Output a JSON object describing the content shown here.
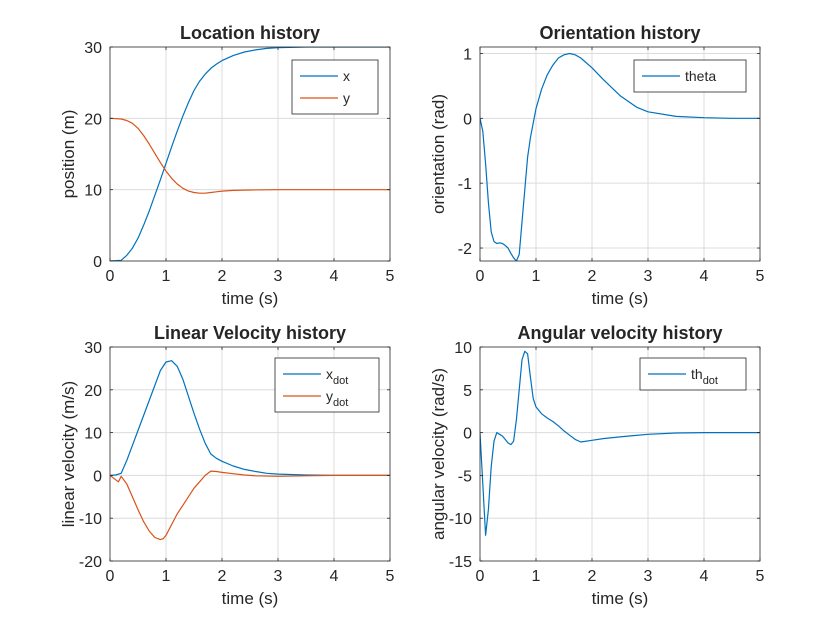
{
  "colors": {
    "series1": "#0072BD",
    "series2": "#D95319",
    "grid": "#dcdcdc",
    "axis": "#262626"
  },
  "chart_data": [
    {
      "type": "line",
      "title": "Location history",
      "xlabel": "time (s)",
      "ylabel": "position (m)",
      "xlim": [
        0,
        5
      ],
      "ylim": [
        0,
        30
      ],
      "xticks": [
        "0",
        "1",
        "2",
        "3",
        "4",
        "5"
      ],
      "yticks": [
        "0",
        "10",
        "20",
        "30"
      ],
      "grid": true,
      "legend_position": "top-right",
      "series": [
        {
          "name": "x",
          "legend": {
            "base": "x",
            "sub": ""
          },
          "x": [
            0,
            0.2,
            0.3,
            0.4,
            0.5,
            0.6,
            0.7,
            0.8,
            0.9,
            1.0,
            1.1,
            1.2,
            1.3,
            1.4,
            1.5,
            1.6,
            1.7,
            1.8,
            1.9,
            2.0,
            2.2,
            2.4,
            2.6,
            2.8,
            3.0,
            3.5,
            4.0,
            5.0
          ],
          "y": [
            0,
            0.1,
            0.8,
            1.8,
            3.2,
            5.0,
            7.0,
            9.2,
            11.4,
            13.7,
            16.0,
            18.2,
            20.3,
            22.2,
            23.9,
            25.2,
            26.2,
            27.0,
            27.6,
            28.1,
            28.8,
            29.3,
            29.6,
            29.8,
            29.9,
            30.0,
            30.0,
            30.0
          ]
        },
        {
          "name": "y",
          "legend": {
            "base": "y",
            "sub": ""
          },
          "x": [
            0,
            0.2,
            0.3,
            0.4,
            0.5,
            0.6,
            0.7,
            0.8,
            0.9,
            1.0,
            1.1,
            1.2,
            1.3,
            1.4,
            1.5,
            1.6,
            1.7,
            1.8,
            1.9,
            2.0,
            2.2,
            2.5,
            3.0,
            3.5,
            4.0,
            5.0
          ],
          "y": [
            20,
            19.9,
            19.7,
            19.3,
            18.6,
            17.6,
            16.4,
            15.1,
            13.8,
            12.6,
            11.6,
            10.8,
            10.2,
            9.8,
            9.6,
            9.5,
            9.5,
            9.6,
            9.7,
            9.8,
            9.9,
            9.95,
            10.0,
            10.0,
            10.0,
            10.0
          ]
        }
      ]
    },
    {
      "type": "line",
      "title": "Orientation history",
      "xlabel": "time (s)",
      "ylabel": "orientation (rad)",
      "xlim": [
        0,
        5
      ],
      "ylim": [
        -2.2,
        1.1
      ],
      "xticks": [
        "0",
        "1",
        "2",
        "3",
        "4",
        "5"
      ],
      "yticks": [
        "-2",
        "-1",
        "0",
        "1"
      ],
      "grid": true,
      "legend_position": "top-right",
      "series": [
        {
          "name": "theta",
          "legend": {
            "base": "theta",
            "sub": ""
          },
          "x": [
            0,
            0.05,
            0.1,
            0.15,
            0.2,
            0.25,
            0.3,
            0.35,
            0.4,
            0.45,
            0.5,
            0.55,
            0.6,
            0.65,
            0.7,
            0.75,
            0.8,
            0.85,
            0.9,
            1.0,
            1.1,
            1.2,
            1.3,
            1.4,
            1.5,
            1.6,
            1.7,
            1.8,
            2.0,
            2.2,
            2.5,
            2.8,
            3.0,
            3.5,
            4.0,
            4.5,
            5.0
          ],
          "y": [
            0,
            -0.2,
            -0.7,
            -1.3,
            -1.75,
            -1.9,
            -1.93,
            -1.92,
            -1.93,
            -1.96,
            -2.0,
            -2.08,
            -2.15,
            -2.2,
            -2.1,
            -1.6,
            -1.1,
            -0.6,
            -0.3,
            0.15,
            0.45,
            0.67,
            0.82,
            0.93,
            0.98,
            1.0,
            0.98,
            0.93,
            0.78,
            0.6,
            0.35,
            0.17,
            0.1,
            0.03,
            0.01,
            0.0,
            0.0
          ]
        }
      ]
    },
    {
      "type": "line",
      "title": "Linear Velocity history",
      "xlabel": "time (s)",
      "ylabel": "linear velocity (m/s)",
      "xlim": [
        0,
        5
      ],
      "ylim": [
        -20,
        30
      ],
      "xticks": [
        "0",
        "1",
        "2",
        "3",
        "4",
        "5"
      ],
      "yticks": [
        "-20",
        "-10",
        "0",
        "10",
        "20",
        "30"
      ],
      "grid": true,
      "legend_position": "top-right",
      "series": [
        {
          "name": "x_dot",
          "legend": {
            "base": "x",
            "sub": "dot"
          },
          "x": [
            0,
            0.1,
            0.2,
            0.3,
            0.4,
            0.5,
            0.6,
            0.7,
            0.8,
            0.9,
            1.0,
            1.1,
            1.2,
            1.3,
            1.4,
            1.5,
            1.6,
            1.7,
            1.8,
            1.9,
            2.0,
            2.2,
            2.4,
            2.6,
            2.8,
            3.0,
            3.5,
            4.0,
            5.0
          ],
          "y": [
            0,
            0.1,
            0.5,
            3.5,
            7.0,
            10.5,
            14.0,
            17.5,
            21.0,
            24.5,
            26.5,
            26.8,
            25.5,
            22.5,
            18.5,
            14.5,
            10.8,
            7.5,
            5.0,
            4.0,
            3.3,
            2.2,
            1.4,
            0.9,
            0.5,
            0.3,
            0.1,
            0.0,
            0.0
          ]
        },
        {
          "name": "y_dot",
          "legend": {
            "base": "y",
            "sub": "dot"
          },
          "x": [
            0,
            0.1,
            0.15,
            0.2,
            0.3,
            0.4,
            0.5,
            0.6,
            0.7,
            0.8,
            0.9,
            0.95,
            1.0,
            1.1,
            1.2,
            1.3,
            1.4,
            1.5,
            1.6,
            1.7,
            1.8,
            1.9,
            2.0,
            2.2,
            2.4,
            2.6,
            3.0,
            3.5,
            4.0,
            5.0
          ],
          "y": [
            0,
            -1.0,
            -1.5,
            -0.2,
            -2.0,
            -5.0,
            -8.0,
            -10.8,
            -13.0,
            -14.5,
            -15.0,
            -14.8,
            -14.0,
            -11.5,
            -9.0,
            -7.0,
            -5.0,
            -3.0,
            -1.5,
            0.0,
            1.0,
            0.9,
            0.7,
            0.4,
            0.1,
            -0.1,
            -0.2,
            -0.1,
            0.0,
            0.0
          ]
        }
      ]
    },
    {
      "type": "line",
      "title": "Angular velocity history",
      "xlabel": "time (s)",
      "ylabel": "angular velocity (rad/s)",
      "xlim": [
        0,
        5
      ],
      "ylim": [
        -15,
        10
      ],
      "xticks": [
        "0",
        "1",
        "2",
        "3",
        "4",
        "5"
      ],
      "yticks": [
        "-15",
        "-10",
        "-5",
        "0",
        "5",
        "10"
      ],
      "grid": true,
      "legend_position": "top-right",
      "series": [
        {
          "name": "th_dot",
          "legend": {
            "base": "th",
            "sub": "dot"
          },
          "x": [
            0,
            0.05,
            0.1,
            0.15,
            0.2,
            0.25,
            0.3,
            0.35,
            0.4,
            0.45,
            0.5,
            0.55,
            0.6,
            0.65,
            0.7,
            0.75,
            0.8,
            0.85,
            0.9,
            0.95,
            1.0,
            1.1,
            1.2,
            1.3,
            1.4,
            1.5,
            1.6,
            1.7,
            1.8,
            2.0,
            2.2,
            2.5,
            3.0,
            3.5,
            4.0,
            5.0
          ],
          "y": [
            0,
            -6.0,
            -12.0,
            -9.0,
            -4.0,
            -1.0,
            0.0,
            -0.2,
            -0.4,
            -0.8,
            -1.2,
            -1.4,
            -1.0,
            1.5,
            5.0,
            8.5,
            9.5,
            9.2,
            6.5,
            4.0,
            3.0,
            2.2,
            1.7,
            1.3,
            0.8,
            0.2,
            -0.3,
            -0.8,
            -1.1,
            -0.9,
            -0.7,
            -0.5,
            -0.2,
            -0.05,
            0.0,
            0.0
          ]
        }
      ]
    }
  ]
}
